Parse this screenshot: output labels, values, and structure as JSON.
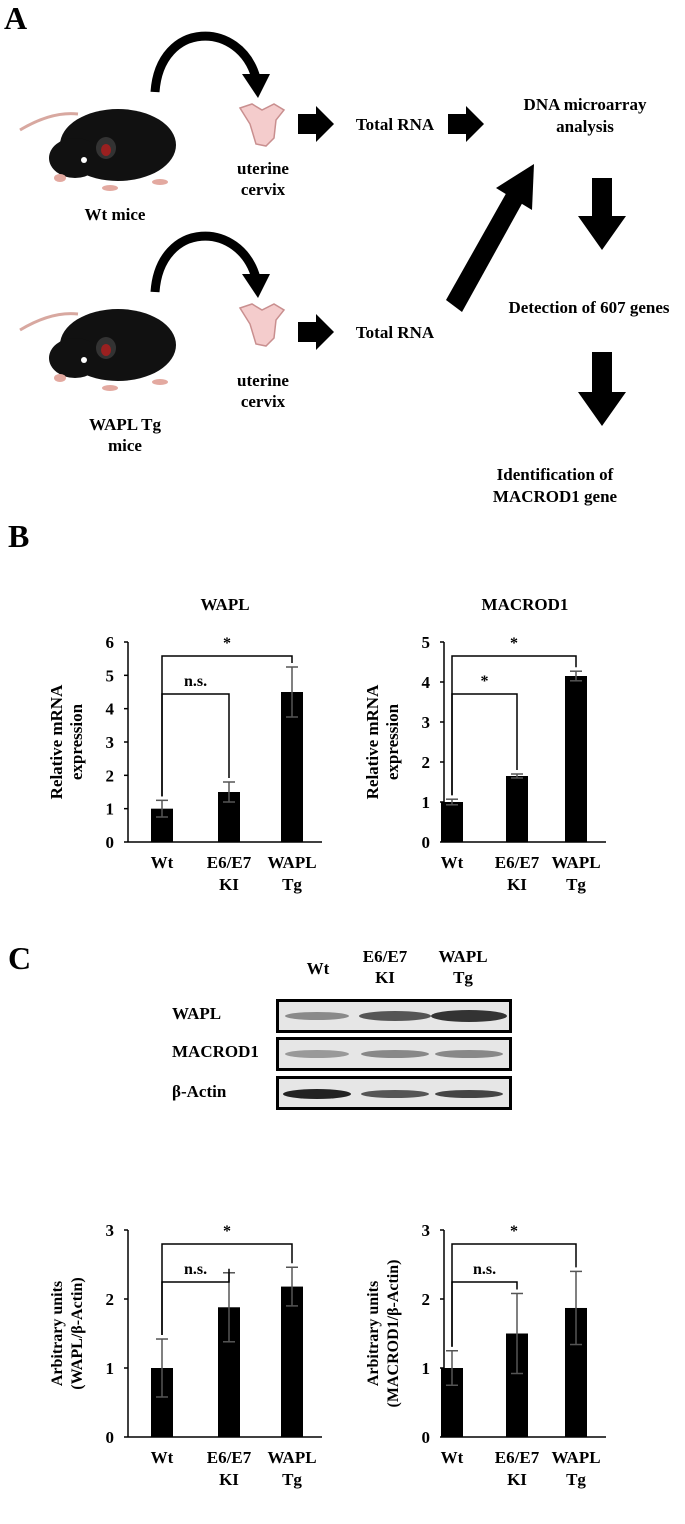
{
  "panel_a": {
    "letter": "A",
    "mouse1_label": "Wt mice",
    "mouse2_label": [
      "WAPL Tg",
      "mice"
    ],
    "tissue_label": [
      "uterine",
      "cervix"
    ],
    "total_rna": "Total RNA",
    "microarray": [
      "DNA microarray",
      "analysis"
    ],
    "detection": "Detection of 607 genes",
    "identification": [
      "Identification of",
      "MACROD1 gene"
    ]
  },
  "panel_b": {
    "letter": "B"
  },
  "panel_c": {
    "letter": "C",
    "blot_headers": [
      "Wt",
      "E6/E7\nKI",
      "WAPL\nTg"
    ],
    "blot_rows": [
      "WAPL",
      "MACROD1",
      "β-Actin"
    ]
  },
  "chart_data": [
    {
      "type": "bar",
      "title": "WAPL",
      "ylabel": "Relative mRNA expression",
      "categories": [
        "Wt",
        "E6/E7 KI",
        "WAPL Tg"
      ],
      "values": [
        1.0,
        1.5,
        4.5
      ],
      "errors": [
        0.25,
        0.3,
        0.75
      ],
      "ylim": [
        0,
        6
      ],
      "yticks": [
        "0",
        "1",
        "2",
        "3",
        "4",
        "5",
        "6"
      ],
      "significance": [
        {
          "from": 0,
          "to": 1,
          "label": "n.s."
        },
        {
          "from": 0,
          "to": 2,
          "label": "*"
        }
      ]
    },
    {
      "type": "bar",
      "title": "MACROD1",
      "ylabel": "Relative mRNA expression",
      "categories": [
        "Wt",
        "E6/E7 KI",
        "WAPL Tg"
      ],
      "values": [
        1.0,
        1.65,
        4.15
      ],
      "errors": [
        0.07,
        0.05,
        0.12
      ],
      "ylim": [
        0,
        5
      ],
      "yticks": [
        "0",
        "1",
        "2",
        "3",
        "4",
        "5"
      ],
      "significance": [
        {
          "from": 0,
          "to": 1,
          "label": "*"
        },
        {
          "from": 0,
          "to": 2,
          "label": "*"
        }
      ]
    },
    {
      "type": "bar",
      "title": "",
      "ylabel": "Arbitrary units (WAPL/β-Actin)",
      "categories": [
        "Wt",
        "E6/E7 KI",
        "WAPL Tg"
      ],
      "values": [
        1.0,
        1.88,
        2.18
      ],
      "errors": [
        0.42,
        0.5,
        0.28
      ],
      "ylim": [
        0,
        3
      ],
      "yticks": [
        "0",
        "1",
        "2",
        "3"
      ],
      "significance": [
        {
          "from": 0,
          "to": 1,
          "label": "n.s."
        },
        {
          "from": 0,
          "to": 2,
          "label": "*"
        }
      ]
    },
    {
      "type": "bar",
      "title": "",
      "ylabel": "Arbitrary units (MACROD1/β-Actin)",
      "categories": [
        "Wt",
        "E6/E7 KI",
        "WAPL Tg"
      ],
      "values": [
        1.0,
        1.5,
        1.87
      ],
      "errors": [
        0.25,
        0.58,
        0.53
      ],
      "ylim": [
        0,
        3
      ],
      "yticks": [
        "0",
        "1",
        "2",
        "3"
      ],
      "significance": [
        {
          "from": 0,
          "to": 1,
          "label": "n.s."
        },
        {
          "from": 0,
          "to": 2,
          "label": "*"
        }
      ]
    }
  ]
}
